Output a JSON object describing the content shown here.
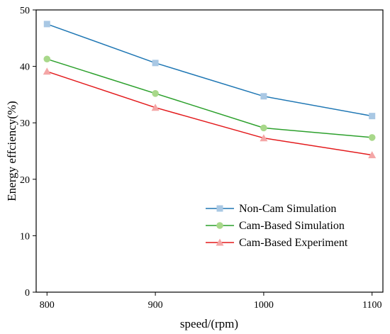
{
  "chart_data": {
    "type": "line",
    "xlabel": "speed/(rpm)",
    "ylabel": "Energy effciency(%)",
    "x": [
      800,
      900,
      1000,
      1100
    ],
    "x_ticks": [
      "800",
      "900",
      "1000",
      "1100"
    ],
    "y_ticks": [
      "0",
      "10",
      "20",
      "30",
      "40",
      "50"
    ],
    "ylim": [
      0,
      50
    ],
    "grid": false,
    "legend_position": "lower-right",
    "series": [
      {
        "name": "Non-Cam Simulation",
        "values": [
          47.5,
          40.6,
          34.7,
          31.2
        ],
        "color": "#1f77b4",
        "marker_color": "#a9c8e4",
        "marker": "square"
      },
      {
        "name": "Cam-Based Simulation",
        "values": [
          41.3,
          35.2,
          29.1,
          27.4
        ],
        "color": "#2ca02c",
        "marker_color": "#a8d88a",
        "marker": "circle"
      },
      {
        "name": "Cam-Based Experiment",
        "values": [
          39.1,
          32.7,
          27.3,
          24.3
        ],
        "color": "#e31a1c",
        "marker_color": "#f4a6a6",
        "marker": "triangle"
      }
    ]
  }
}
